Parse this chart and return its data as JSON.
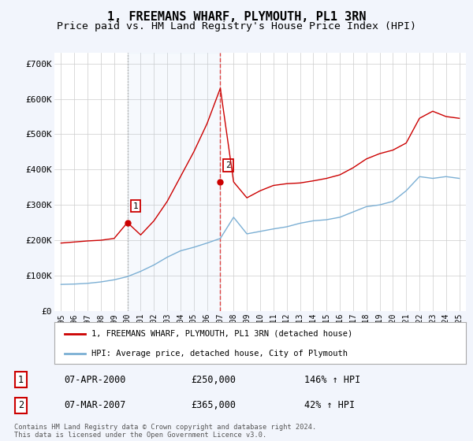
{
  "title": "1, FREEMANS WHARF, PLYMOUTH, PL1 3RN",
  "subtitle": "Price paid vs. HM Land Registry's House Price Index (HPI)",
  "title_fontsize": 11,
  "subtitle_fontsize": 9.5,
  "ylim": [
    0,
    730000
  ],
  "yticks": [
    0,
    100000,
    200000,
    300000,
    400000,
    500000,
    600000,
    700000
  ],
  "ytick_labels": [
    "£0",
    "£100K",
    "£200K",
    "£300K",
    "£400K",
    "£500K",
    "£600K",
    "£700K"
  ],
  "sale1_x": 5,
  "sale1_price": 250000,
  "sale2_x": 12,
  "sale2_price": 365000,
  "sale_color": "#cc0000",
  "hpi_color": "#7bafd4",
  "vline1_color": "#aaaaaa",
  "vline2_color": "#dd4444",
  "legend_label1": "1, FREEMANS WHARF, PLYMOUTH, PL1 3RN (detached house)",
  "legend_label2": "HPI: Average price, detached house, City of Plymouth",
  "table_row1": [
    "1",
    "07-APR-2000",
    "£250,000",
    "146% ↑ HPI"
  ],
  "table_row2": [
    "2",
    "07-MAR-2007",
    "£365,000",
    "42% ↑ HPI"
  ],
  "footnote": "Contains HM Land Registry data © Crown copyright and database right 2024.\nThis data is licensed under the Open Government Licence v3.0.",
  "bg_color": "#f2f5fc",
  "plot_bg": "#ffffff",
  "grid_color": "#cccccc",
  "years": [
    "1995",
    "1996",
    "1997",
    "1998",
    "1999",
    "2000",
    "2001",
    "2002",
    "2003",
    "2004",
    "2005",
    "2006",
    "2007",
    "2008",
    "2009",
    "2010",
    "2011",
    "2012",
    "2013",
    "2014",
    "2015",
    "2016",
    "2017",
    "2018",
    "2019",
    "2020",
    "2021",
    "2022",
    "2023",
    "2024",
    "2025"
  ],
  "hpi_values": [
    75000,
    76000,
    78000,
    82000,
    88000,
    97000,
    112000,
    130000,
    152000,
    170000,
    180000,
    192000,
    205000,
    265000,
    218000,
    225000,
    232000,
    238000,
    248000,
    255000,
    258000,
    265000,
    280000,
    295000,
    300000,
    310000,
    340000,
    380000,
    375000,
    380000,
    375000
  ],
  "pp_values": [
    192000,
    195000,
    198000,
    200000,
    205000,
    250000,
    215000,
    255000,
    310000,
    380000,
    450000,
    530000,
    630000,
    365000,
    320000,
    340000,
    355000,
    360000,
    362000,
    368000,
    375000,
    385000,
    405000,
    430000,
    445000,
    455000,
    475000,
    545000,
    565000,
    550000,
    545000
  ],
  "span_alpha": 0.1,
  "span_color": "#aaccee"
}
